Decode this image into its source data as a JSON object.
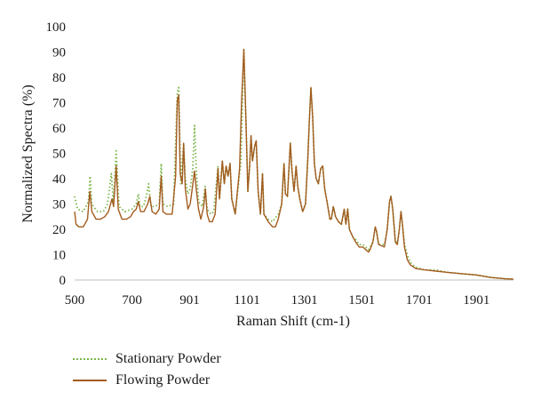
{
  "chart_data": {
    "type": "line",
    "xlabel": "Raman Shift (cm-1)",
    "ylabel": "Normalized Spectra (%)",
    "xlim": [
      500,
      2030
    ],
    "ylim": [
      0,
      100
    ],
    "x_ticks": [
      500,
      700,
      901,
      1101,
      1301,
      1501,
      1701,
      1901
    ],
    "y_ticks": [
      0,
      10,
      20,
      30,
      40,
      50,
      60,
      70,
      80,
      90,
      100
    ],
    "grid": false,
    "legend_position": "bottom-left",
    "series": [
      {
        "name": "Stationary Powder",
        "color": "#7ab648",
        "style": "dotted",
        "points": [
          [
            500,
            33
          ],
          [
            510,
            28
          ],
          [
            530,
            27
          ],
          [
            548,
            31
          ],
          [
            554,
            41
          ],
          [
            560,
            30
          ],
          [
            580,
            27
          ],
          [
            600,
            27
          ],
          [
            615,
            30
          ],
          [
            628,
            42
          ],
          [
            635,
            31
          ],
          [
            645,
            51
          ],
          [
            655,
            29
          ],
          [
            675,
            27
          ],
          [
            700,
            28
          ],
          [
            715,
            30
          ],
          [
            722,
            34
          ],
          [
            728,
            29
          ],
          [
            740,
            29
          ],
          [
            752,
            34
          ],
          [
            758,
            38
          ],
          [
            766,
            29
          ],
          [
            780,
            29
          ],
          [
            795,
            30
          ],
          [
            802,
            46
          ],
          [
            808,
            30
          ],
          [
            825,
            29
          ],
          [
            845,
            30
          ],
          [
            858,
            74
          ],
          [
            863,
            76
          ],
          [
            870,
            38
          ],
          [
            880,
            54
          ],
          [
            886,
            40
          ],
          [
            895,
            34
          ],
          [
            903,
            36
          ],
          [
            912,
            44
          ],
          [
            918,
            61
          ],
          [
            924,
            44
          ],
          [
            932,
            31
          ],
          [
            945,
            29
          ],
          [
            955,
            37
          ],
          [
            962,
            28
          ],
          [
            975,
            26
          ],
          [
            985,
            27
          ],
          [
            1000,
            45
          ],
          [
            1005,
            32
          ],
          [
            1015,
            47
          ],
          [
            1022,
            38
          ],
          [
            1028,
            45
          ],
          [
            1035,
            41
          ],
          [
            1042,
            46
          ],
          [
            1048,
            32
          ],
          [
            1060,
            26
          ],
          [
            1080,
            47
          ],
          [
            1090,
            91
          ],
          [
            1098,
            60
          ],
          [
            1104,
            35
          ],
          [
            1110,
            45
          ],
          [
            1115,
            57
          ],
          [
            1120,
            47
          ],
          [
            1128,
            53
          ],
          [
            1133,
            55
          ],
          [
            1140,
            35
          ],
          [
            1148,
            26
          ],
          [
            1155,
            42
          ],
          [
            1160,
            26
          ],
          [
            1175,
            24
          ],
          [
            1190,
            23
          ],
          [
            1210,
            26
          ],
          [
            1222,
            30
          ],
          [
            1230,
            46
          ],
          [
            1235,
            34
          ],
          [
            1242,
            33
          ],
          [
            1252,
            54
          ],
          [
            1258,
            43
          ],
          [
            1265,
            35
          ],
          [
            1272,
            45
          ],
          [
            1278,
            37
          ],
          [
            1285,
            32
          ],
          [
            1295,
            27
          ],
          [
            1305,
            30
          ],
          [
            1313,
            48
          ],
          [
            1318,
            62
          ],
          [
            1324,
            76
          ],
          [
            1330,
            64
          ],
          [
            1336,
            46
          ],
          [
            1342,
            40
          ],
          [
            1350,
            38
          ],
          [
            1358,
            44
          ],
          [
            1365,
            45
          ],
          [
            1372,
            36
          ],
          [
            1380,
            31
          ],
          [
            1390,
            24
          ],
          [
            1395,
            24
          ],
          [
            1402,
            29
          ],
          [
            1410,
            25
          ],
          [
            1420,
            23
          ],
          [
            1430,
            22
          ],
          [
            1440,
            28
          ],
          [
            1446,
            22
          ],
          [
            1452,
            28
          ],
          [
            1458,
            20
          ],
          [
            1470,
            17
          ],
          [
            1480,
            16
          ],
          [
            1492,
            14
          ],
          [
            1505,
            14
          ],
          [
            1515,
            13
          ],
          [
            1525,
            12
          ],
          [
            1530,
            13
          ],
          [
            1540,
            15
          ],
          [
            1548,
            21
          ],
          [
            1553,
            19
          ],
          [
            1560,
            14
          ],
          [
            1580,
            14
          ],
          [
            1590,
            20
          ],
          [
            1598,
            31
          ],
          [
            1603,
            33
          ],
          [
            1609,
            28
          ],
          [
            1618,
            16
          ],
          [
            1625,
            14
          ],
          [
            1632,
            20
          ],
          [
            1638,
            27
          ],
          [
            1643,
            22
          ],
          [
            1650,
            14
          ],
          [
            1660,
            10
          ],
          [
            1670,
            7
          ],
          [
            1690,
            5
          ],
          [
            1720,
            4
          ],
          [
            1760,
            4
          ],
          [
            1800,
            3
          ],
          [
            1850,
            2.5
          ],
          [
            1900,
            2
          ],
          [
            1950,
            1
          ],
          [
            2000,
            0.5
          ],
          [
            2030,
            0.3
          ]
        ]
      },
      {
        "name": "Flowing Powder",
        "color": "#a35c1f",
        "style": "solid",
        "points": [
          [
            500,
            27
          ],
          [
            505,
            22
          ],
          [
            515,
            21
          ],
          [
            530,
            21
          ],
          [
            545,
            24
          ],
          [
            553,
            35
          ],
          [
            560,
            27
          ],
          [
            575,
            24
          ],
          [
            590,
            24
          ],
          [
            605,
            25
          ],
          [
            618,
            27
          ],
          [
            630,
            32
          ],
          [
            636,
            29
          ],
          [
            645,
            45
          ],
          [
            652,
            28
          ],
          [
            665,
            24
          ],
          [
            680,
            24
          ],
          [
            695,
            25
          ],
          [
            705,
            27
          ],
          [
            715,
            28
          ],
          [
            722,
            31
          ],
          [
            730,
            27
          ],
          [
            742,
            27
          ],
          [
            755,
            30
          ],
          [
            762,
            33
          ],
          [
            770,
            27
          ],
          [
            783,
            26
          ],
          [
            795,
            28
          ],
          [
            802,
            41
          ],
          [
            808,
            27
          ],
          [
            820,
            26
          ],
          [
            840,
            26
          ],
          [
            852,
            41
          ],
          [
            858,
            71
          ],
          [
            863,
            73
          ],
          [
            868,
            42
          ],
          [
            875,
            38
          ],
          [
            880,
            54
          ],
          [
            886,
            36
          ],
          [
            895,
            28
          ],
          [
            903,
            30
          ],
          [
            910,
            36
          ],
          [
            918,
            43
          ],
          [
            924,
            36
          ],
          [
            932,
            28
          ],
          [
            940,
            24
          ],
          [
            950,
            29
          ],
          [
            956,
            36
          ],
          [
            962,
            26
          ],
          [
            970,
            23
          ],
          [
            980,
            23
          ],
          [
            990,
            26
          ],
          [
            1000,
            44
          ],
          [
            1005,
            32
          ],
          [
            1015,
            47
          ],
          [
            1022,
            38
          ],
          [
            1028,
            45
          ],
          [
            1035,
            41
          ],
          [
            1042,
            46
          ],
          [
            1048,
            32
          ],
          [
            1060,
            26
          ],
          [
            1075,
            44
          ],
          [
            1082,
            70
          ],
          [
            1090,
            91
          ],
          [
            1098,
            60
          ],
          [
            1104,
            35
          ],
          [
            1110,
            45
          ],
          [
            1115,
            57
          ],
          [
            1120,
            47
          ],
          [
            1128,
            53
          ],
          [
            1133,
            55
          ],
          [
            1140,
            35
          ],
          [
            1148,
            26
          ],
          [
            1155,
            42
          ],
          [
            1160,
            26
          ],
          [
            1175,
            23
          ],
          [
            1190,
            21
          ],
          [
            1200,
            21
          ],
          [
            1210,
            24
          ],
          [
            1222,
            30
          ],
          [
            1230,
            46
          ],
          [
            1235,
            34
          ],
          [
            1242,
            33
          ],
          [
            1252,
            54
          ],
          [
            1258,
            43
          ],
          [
            1265,
            35
          ],
          [
            1272,
            45
          ],
          [
            1278,
            37
          ],
          [
            1285,
            32
          ],
          [
            1295,
            27
          ],
          [
            1305,
            30
          ],
          [
            1313,
            48
          ],
          [
            1318,
            62
          ],
          [
            1324,
            76
          ],
          [
            1330,
            64
          ],
          [
            1336,
            46
          ],
          [
            1342,
            40
          ],
          [
            1350,
            38
          ],
          [
            1358,
            44
          ],
          [
            1365,
            45
          ],
          [
            1372,
            36
          ],
          [
            1380,
            31
          ],
          [
            1390,
            24
          ],
          [
            1395,
            24
          ],
          [
            1402,
            29
          ],
          [
            1410,
            25
          ],
          [
            1420,
            23
          ],
          [
            1430,
            22
          ],
          [
            1440,
            28
          ],
          [
            1446,
            22
          ],
          [
            1452,
            28
          ],
          [
            1458,
            20
          ],
          [
            1470,
            17
          ],
          [
            1480,
            15
          ],
          [
            1492,
            13
          ],
          [
            1505,
            13
          ],
          [
            1515,
            12
          ],
          [
            1525,
            11
          ],
          [
            1530,
            12
          ],
          [
            1540,
            15
          ],
          [
            1548,
            21
          ],
          [
            1553,
            19
          ],
          [
            1560,
            14
          ],
          [
            1580,
            13
          ],
          [
            1590,
            20
          ],
          [
            1598,
            31
          ],
          [
            1603,
            33
          ],
          [
            1609,
            28
          ],
          [
            1618,
            15
          ],
          [
            1625,
            14
          ],
          [
            1632,
            20
          ],
          [
            1638,
            27
          ],
          [
            1643,
            22
          ],
          [
            1650,
            13
          ],
          [
            1660,
            8
          ],
          [
            1670,
            6
          ],
          [
            1690,
            4.5
          ],
          [
            1720,
            4
          ],
          [
            1760,
            3.5
          ],
          [
            1800,
            3
          ],
          [
            1850,
            2.5
          ],
          [
            1900,
            2
          ],
          [
            1950,
            1
          ],
          [
            2000,
            0.5
          ],
          [
            2030,
            0.3
          ]
        ]
      }
    ]
  }
}
